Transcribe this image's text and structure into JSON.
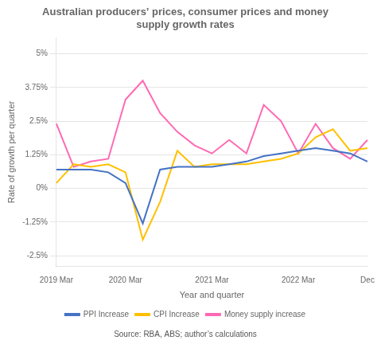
{
  "chart_data": {
    "type": "line",
    "title": "Australian producers’ prices, consumer prices and money\nsupply growth rates",
    "xlabel": "Year and quarter",
    "ylabel": "Rate of growth per quarter",
    "source": "Source: RBA, ABS; author’s calculations",
    "categories": [
      "2019 Mar",
      null,
      null,
      null,
      "2020 Mar",
      null,
      null,
      null,
      null,
      "2021 Mar",
      null,
      null,
      null,
      null,
      "2022 Mar",
      null,
      null,
      null,
      "Dec"
    ],
    "series": [
      {
        "name": "PPI Increase",
        "color": "#4472C4",
        "values": [
          0.007,
          0.007,
          0.007,
          0.006,
          0.002,
          -0.013,
          0.007,
          0.008,
          0.008,
          0.008,
          0.009,
          0.01,
          0.012,
          0.013,
          0.014,
          0.015,
          0.014,
          0.013,
          0.01
        ]
      },
      {
        "name": "CPI Increase",
        "color": "#FFC000",
        "values": [
          0.002,
          0.009,
          0.008,
          0.009,
          0.006,
          -0.019,
          -0.005,
          0.014,
          0.008,
          0.009,
          0.009,
          0.009,
          0.01,
          0.011,
          0.013,
          0.019,
          0.022,
          0.014,
          0.015
        ]
      },
      {
        "name": "Money supply increase",
        "color": "#FF69B4",
        "values": [
          0.024,
          0.008,
          0.01,
          0.011,
          0.033,
          0.04,
          0.028,
          0.021,
          0.016,
          0.013,
          0.018,
          0.013,
          0.031,
          0.025,
          0.013,
          0.024,
          0.015,
          0.011,
          0.018
        ]
      }
    ],
    "ylim": [
      -0.029,
      0.056
    ],
    "yticks": [
      {
        "value": -0.025,
        "label": "-2.5%"
      },
      {
        "value": -0.0125,
        "label": "-1.25%"
      },
      {
        "value": 0.0,
        "label": "0%"
      },
      {
        "value": 0.0125,
        "label": "1.25%"
      },
      {
        "value": 0.025,
        "label": "2.5%"
      },
      {
        "value": 0.0375,
        "label": "3.75%"
      },
      {
        "value": 0.05,
        "label": "5%"
      }
    ],
    "grid": true,
    "legend": "bottom"
  }
}
